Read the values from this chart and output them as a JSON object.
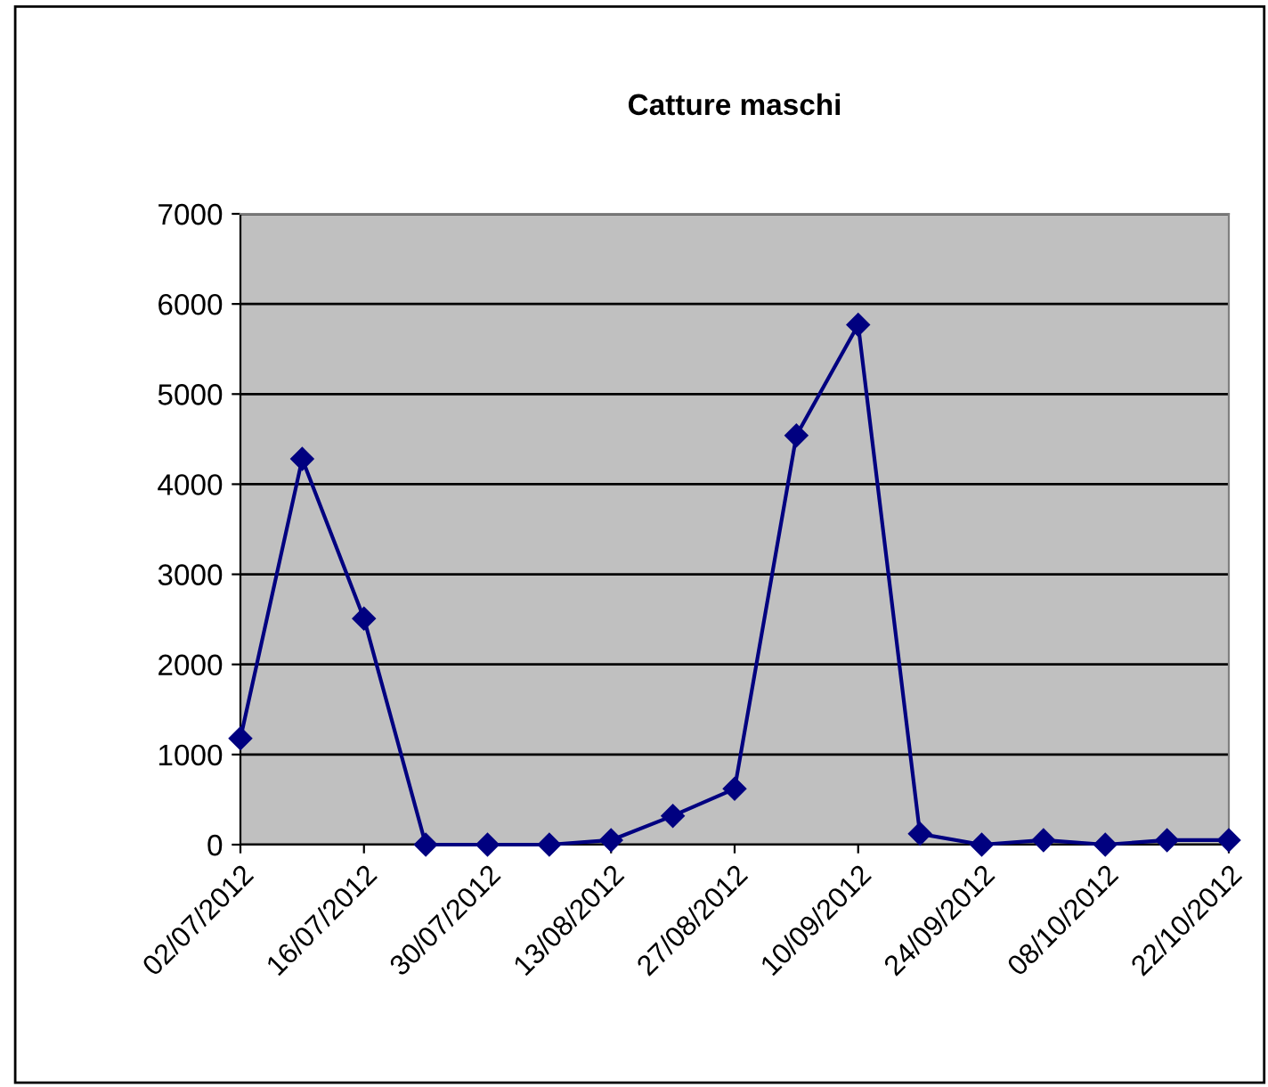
{
  "chart_data": {
    "type": "line",
    "title": "Catture maschi",
    "x": [
      "2012-07-02",
      "2012-07-09",
      "2012-07-16",
      "2012-07-23",
      "2012-07-30",
      "2012-08-06",
      "2012-08-13",
      "2012-08-20",
      "2012-08-27",
      "2012-09-03",
      "2012-09-10",
      "2012-09-17",
      "2012-09-24",
      "2012-10-01",
      "2012-10-08",
      "2012-10-15",
      "2012-10-22"
    ],
    "series": [
      {
        "color": "#000080",
        "values": [
          1180,
          4280,
          2510,
          0,
          0,
          0,
          50,
          320,
          620,
          4540,
          5770,
          120,
          0,
          50,
          0,
          50,
          50
        ]
      }
    ],
    "xlim": [
      "2012-07-02",
      "2012-10-22"
    ],
    "xticks": [
      {
        "value": "2012-07-02",
        "label": "02/07/2012"
      },
      {
        "value": "2012-07-16",
        "label": "16/07/2012"
      },
      {
        "value": "2012-07-30",
        "label": "30/07/2012"
      },
      {
        "value": "2012-08-13",
        "label": "13/08/2012"
      },
      {
        "value": "2012-08-27",
        "label": "27/08/2012"
      },
      {
        "value": "2012-09-10",
        "label": "10/09/2012"
      },
      {
        "value": "2012-09-24",
        "label": "24/09/2012"
      },
      {
        "value": "2012-10-08",
        "label": "08/10/2012"
      },
      {
        "value": "2012-10-22",
        "label": "22/10/2012"
      }
    ],
    "ylim": [
      0,
      7000
    ],
    "yticks": [
      0,
      1000,
      2000,
      3000,
      4000,
      5000,
      6000,
      7000
    ],
    "grid": "y",
    "marker": "diamond",
    "line_style": "solid",
    "legend": false
  }
}
